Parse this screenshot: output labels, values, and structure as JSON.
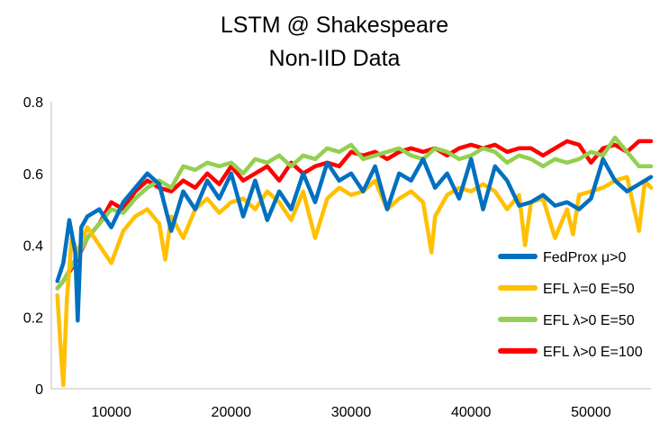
{
  "chart_data": {
    "type": "line",
    "title": [
      "LSTM @ Shakespeare",
      "Non-IID Data"
    ],
    "xlabel": "",
    "ylabel": "",
    "xlim": [
      5000,
      55000
    ],
    "ylim": [
      0,
      0.8
    ],
    "x_ticks": [
      "10000",
      "20000",
      "30000",
      "40000",
      "50000"
    ],
    "x_tick_values": [
      10000,
      20000,
      30000,
      40000,
      50000
    ],
    "y_ticks": [
      "0",
      "0.2",
      "0.4",
      "0.6",
      "0.8"
    ],
    "y_tick_values": [
      0,
      0.2,
      0.4,
      0.6,
      0.8
    ],
    "grid": false,
    "legend_position": "bottom-right",
    "series": [
      {
        "name": "EFL λ>0 E=100",
        "color": "#ff0000",
        "points": [
          [
            5500,
            0.28
          ],
          [
            6000,
            0.3
          ],
          [
            7000,
            0.35
          ],
          [
            8000,
            0.42
          ],
          [
            9000,
            0.46
          ],
          [
            10000,
            0.52
          ],
          [
            11000,
            0.5
          ],
          [
            12000,
            0.55
          ],
          [
            13000,
            0.58
          ],
          [
            14000,
            0.56
          ],
          [
            15000,
            0.55
          ],
          [
            16000,
            0.58
          ],
          [
            17000,
            0.56
          ],
          [
            18000,
            0.6
          ],
          [
            19000,
            0.57
          ],
          [
            20000,
            0.62
          ],
          [
            21000,
            0.58
          ],
          [
            22000,
            0.6
          ],
          [
            23000,
            0.62
          ],
          [
            24000,
            0.58
          ],
          [
            25000,
            0.63
          ],
          [
            26000,
            0.6
          ],
          [
            27000,
            0.62
          ],
          [
            28000,
            0.63
          ],
          [
            29000,
            0.62
          ],
          [
            30000,
            0.66
          ],
          [
            31000,
            0.65
          ],
          [
            32000,
            0.66
          ],
          [
            33000,
            0.64
          ],
          [
            34000,
            0.66
          ],
          [
            35000,
            0.67
          ],
          [
            36000,
            0.66
          ],
          [
            37000,
            0.67
          ],
          [
            38000,
            0.65
          ],
          [
            39000,
            0.67
          ],
          [
            40000,
            0.68
          ],
          [
            41000,
            0.67
          ],
          [
            42000,
            0.68
          ],
          [
            43000,
            0.66
          ],
          [
            44000,
            0.67
          ],
          [
            45000,
            0.67
          ],
          [
            46000,
            0.65
          ],
          [
            47000,
            0.67
          ],
          [
            48000,
            0.69
          ],
          [
            49000,
            0.68
          ],
          [
            50000,
            0.63
          ],
          [
            51000,
            0.67
          ],
          [
            52000,
            0.68
          ],
          [
            53000,
            0.66
          ],
          [
            54000,
            0.69
          ],
          [
            55000,
            0.69
          ]
        ]
      },
      {
        "name": "EFL λ>0 E=50",
        "color": "#92d050",
        "points": [
          [
            5500,
            0.28
          ],
          [
            6000,
            0.3
          ],
          [
            7000,
            0.36
          ],
          [
            8000,
            0.42
          ],
          [
            9000,
            0.46
          ],
          [
            10000,
            0.5
          ],
          [
            11000,
            0.49
          ],
          [
            12000,
            0.53
          ],
          [
            13000,
            0.56
          ],
          [
            14000,
            0.58
          ],
          [
            15000,
            0.56
          ],
          [
            16000,
            0.62
          ],
          [
            17000,
            0.61
          ],
          [
            18000,
            0.63
          ],
          [
            19000,
            0.62
          ],
          [
            20000,
            0.63
          ],
          [
            21000,
            0.6
          ],
          [
            22000,
            0.64
          ],
          [
            23000,
            0.63
          ],
          [
            24000,
            0.65
          ],
          [
            25000,
            0.62
          ],
          [
            26000,
            0.65
          ],
          [
            27000,
            0.64
          ],
          [
            28000,
            0.67
          ],
          [
            29000,
            0.66
          ],
          [
            30000,
            0.68
          ],
          [
            31000,
            0.64
          ],
          [
            32000,
            0.65
          ],
          [
            33000,
            0.66
          ],
          [
            34000,
            0.67
          ],
          [
            35000,
            0.65
          ],
          [
            36000,
            0.64
          ],
          [
            37000,
            0.67
          ],
          [
            38000,
            0.66
          ],
          [
            39000,
            0.64
          ],
          [
            40000,
            0.65
          ],
          [
            41000,
            0.67
          ],
          [
            42000,
            0.66
          ],
          [
            43000,
            0.63
          ],
          [
            44000,
            0.65
          ],
          [
            45000,
            0.64
          ],
          [
            46000,
            0.62
          ],
          [
            47000,
            0.64
          ],
          [
            48000,
            0.63
          ],
          [
            49000,
            0.64
          ],
          [
            50000,
            0.66
          ],
          [
            51000,
            0.65
          ],
          [
            52000,
            0.7
          ],
          [
            53000,
            0.66
          ],
          [
            54000,
            0.62
          ],
          [
            55000,
            0.62
          ]
        ]
      },
      {
        "name": "EFL λ=0 E=50",
        "color": "#ffc000",
        "points": [
          [
            5500,
            0.26
          ],
          [
            5800,
            0.1
          ],
          [
            6000,
            0.01
          ],
          [
            6300,
            0.25
          ],
          [
            6700,
            0.42
          ],
          [
            7200,
            0.38
          ],
          [
            8000,
            0.45
          ],
          [
            9000,
            0.4
          ],
          [
            10000,
            0.35
          ],
          [
            11000,
            0.44
          ],
          [
            12000,
            0.48
          ],
          [
            13000,
            0.5
          ],
          [
            14000,
            0.46
          ],
          [
            14500,
            0.36
          ],
          [
            15000,
            0.48
          ],
          [
            16000,
            0.42
          ],
          [
            17000,
            0.5
          ],
          [
            18000,
            0.53
          ],
          [
            19000,
            0.49
          ],
          [
            20000,
            0.52
          ],
          [
            21000,
            0.53
          ],
          [
            22000,
            0.5
          ],
          [
            23000,
            0.55
          ],
          [
            24000,
            0.52
          ],
          [
            25000,
            0.47
          ],
          [
            26000,
            0.55
          ],
          [
            27000,
            0.42
          ],
          [
            28000,
            0.53
          ],
          [
            29000,
            0.56
          ],
          [
            30000,
            0.54
          ],
          [
            31000,
            0.55
          ],
          [
            32000,
            0.58
          ],
          [
            33000,
            0.5
          ],
          [
            34000,
            0.53
          ],
          [
            35000,
            0.55
          ],
          [
            36000,
            0.52
          ],
          [
            36700,
            0.38
          ],
          [
            37000,
            0.48
          ],
          [
            38000,
            0.54
          ],
          [
            39000,
            0.56
          ],
          [
            40000,
            0.55
          ],
          [
            41000,
            0.57
          ],
          [
            42000,
            0.55
          ],
          [
            43000,
            0.5
          ],
          [
            44000,
            0.54
          ],
          [
            44500,
            0.4
          ],
          [
            45000,
            0.52
          ],
          [
            46000,
            0.53
          ],
          [
            47000,
            0.42
          ],
          [
            48000,
            0.5
          ],
          [
            48500,
            0.43
          ],
          [
            49000,
            0.54
          ],
          [
            50000,
            0.55
          ],
          [
            51000,
            0.56
          ],
          [
            52000,
            0.58
          ],
          [
            53000,
            0.59
          ],
          [
            54000,
            0.44
          ],
          [
            54500,
            0.58
          ],
          [
            55000,
            0.56
          ]
        ]
      },
      {
        "name": "FedProx μ>0",
        "color": "#0070c0",
        "points": [
          [
            5500,
            0.3
          ],
          [
            6000,
            0.35
          ],
          [
            6500,
            0.47
          ],
          [
            7000,
            0.38
          ],
          [
            7200,
            0.19
          ],
          [
            7500,
            0.45
          ],
          [
            8000,
            0.48
          ],
          [
            9000,
            0.5
          ],
          [
            10000,
            0.45
          ],
          [
            11000,
            0.52
          ],
          [
            12000,
            0.56
          ],
          [
            13000,
            0.6
          ],
          [
            14000,
            0.57
          ],
          [
            15000,
            0.44
          ],
          [
            16000,
            0.55
          ],
          [
            17000,
            0.5
          ],
          [
            18000,
            0.58
          ],
          [
            19000,
            0.53
          ],
          [
            20000,
            0.6
          ],
          [
            21000,
            0.48
          ],
          [
            22000,
            0.58
          ],
          [
            23000,
            0.47
          ],
          [
            24000,
            0.55
          ],
          [
            25000,
            0.5
          ],
          [
            26000,
            0.6
          ],
          [
            27000,
            0.52
          ],
          [
            28000,
            0.63
          ],
          [
            29000,
            0.58
          ],
          [
            30000,
            0.6
          ],
          [
            31000,
            0.55
          ],
          [
            32000,
            0.62
          ],
          [
            33000,
            0.5
          ],
          [
            34000,
            0.6
          ],
          [
            35000,
            0.58
          ],
          [
            36000,
            0.64
          ],
          [
            37000,
            0.56
          ],
          [
            38000,
            0.6
          ],
          [
            39000,
            0.53
          ],
          [
            40000,
            0.64
          ],
          [
            41000,
            0.5
          ],
          [
            42000,
            0.62
          ],
          [
            43000,
            0.58
          ],
          [
            44000,
            0.51
          ],
          [
            45000,
            0.52
          ],
          [
            46000,
            0.54
          ],
          [
            47000,
            0.51
          ],
          [
            48000,
            0.52
          ],
          [
            49000,
            0.5
          ],
          [
            50000,
            0.53
          ],
          [
            51000,
            0.64
          ],
          [
            52000,
            0.58
          ],
          [
            53000,
            0.55
          ],
          [
            54000,
            0.57
          ],
          [
            55000,
            0.59
          ]
        ]
      }
    ],
    "legend_order": [
      3,
      2,
      1,
      0
    ]
  }
}
